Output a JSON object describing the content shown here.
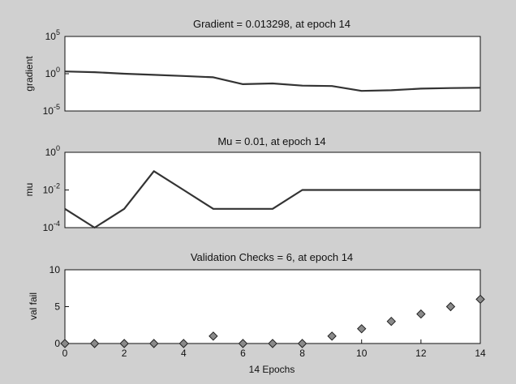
{
  "chart_data": [
    {
      "type": "line",
      "title": "Gradient = 0.013298, at epoch 14",
      "ylabel": "gradient",
      "yscale": "log",
      "ylim": [
        1e-05,
        100000.0
      ],
      "yticks": [
        {
          "value": 100000.0,
          "base": "10",
          "exp": "5"
        },
        {
          "value": 1,
          "base": "10",
          "exp": "0"
        },
        {
          "value": 1e-05,
          "base": "10",
          "exp": "-5"
        }
      ],
      "x": [
        0,
        1,
        2,
        3,
        4,
        5,
        6,
        7,
        8,
        9,
        10,
        11,
        12,
        13,
        14
      ],
      "values": [
        2.0,
        1.6,
        1.0,
        0.7,
        0.5,
        0.33,
        0.04,
        0.05,
        0.025,
        0.022,
        0.005,
        0.006,
        0.01,
        0.012,
        0.013298
      ],
      "xlim": [
        0,
        14
      ]
    },
    {
      "type": "line",
      "title": "Mu = 0.01, at epoch 14",
      "ylabel": "mu",
      "yscale": "log",
      "ylim": [
        0.0001,
        1
      ],
      "yticks": [
        {
          "value": 1,
          "base": "10",
          "exp": "0"
        },
        {
          "value": 0.01,
          "base": "10",
          "exp": "-2"
        },
        {
          "value": 0.0001,
          "base": "10",
          "exp": "-4"
        }
      ],
      "x": [
        0,
        1,
        2,
        3,
        4,
        5,
        6,
        7,
        8,
        9,
        10,
        11,
        12,
        13,
        14
      ],
      "values": [
        0.001,
        0.0001,
        0.001,
        0.1,
        0.01,
        0.001,
        0.001,
        0.001,
        0.01,
        0.01,
        0.01,
        0.01,
        0.01,
        0.01,
        0.01
      ],
      "xlim": [
        0,
        14
      ]
    },
    {
      "type": "scatter",
      "title": "Validation Checks = 6, at epoch 14",
      "ylabel": "val fail",
      "xlabel": "14 Epochs",
      "yscale": "linear",
      "ylim": [
        0,
        10
      ],
      "yticks": [
        {
          "value": 10,
          "label": "10"
        },
        {
          "value": 5,
          "label": "5"
        },
        {
          "value": 0,
          "label": "0"
        }
      ],
      "xticks": [
        0,
        2,
        4,
        6,
        8,
        10,
        12,
        14
      ],
      "x": [
        0,
        1,
        2,
        3,
        4,
        5,
        6,
        7,
        8,
        9,
        10,
        11,
        12,
        13,
        14
      ],
      "values": [
        0,
        0,
        0,
        0,
        0,
        1,
        0,
        0,
        0,
        1,
        2,
        3,
        4,
        5,
        6
      ],
      "xlim": [
        0,
        14
      ]
    }
  ]
}
